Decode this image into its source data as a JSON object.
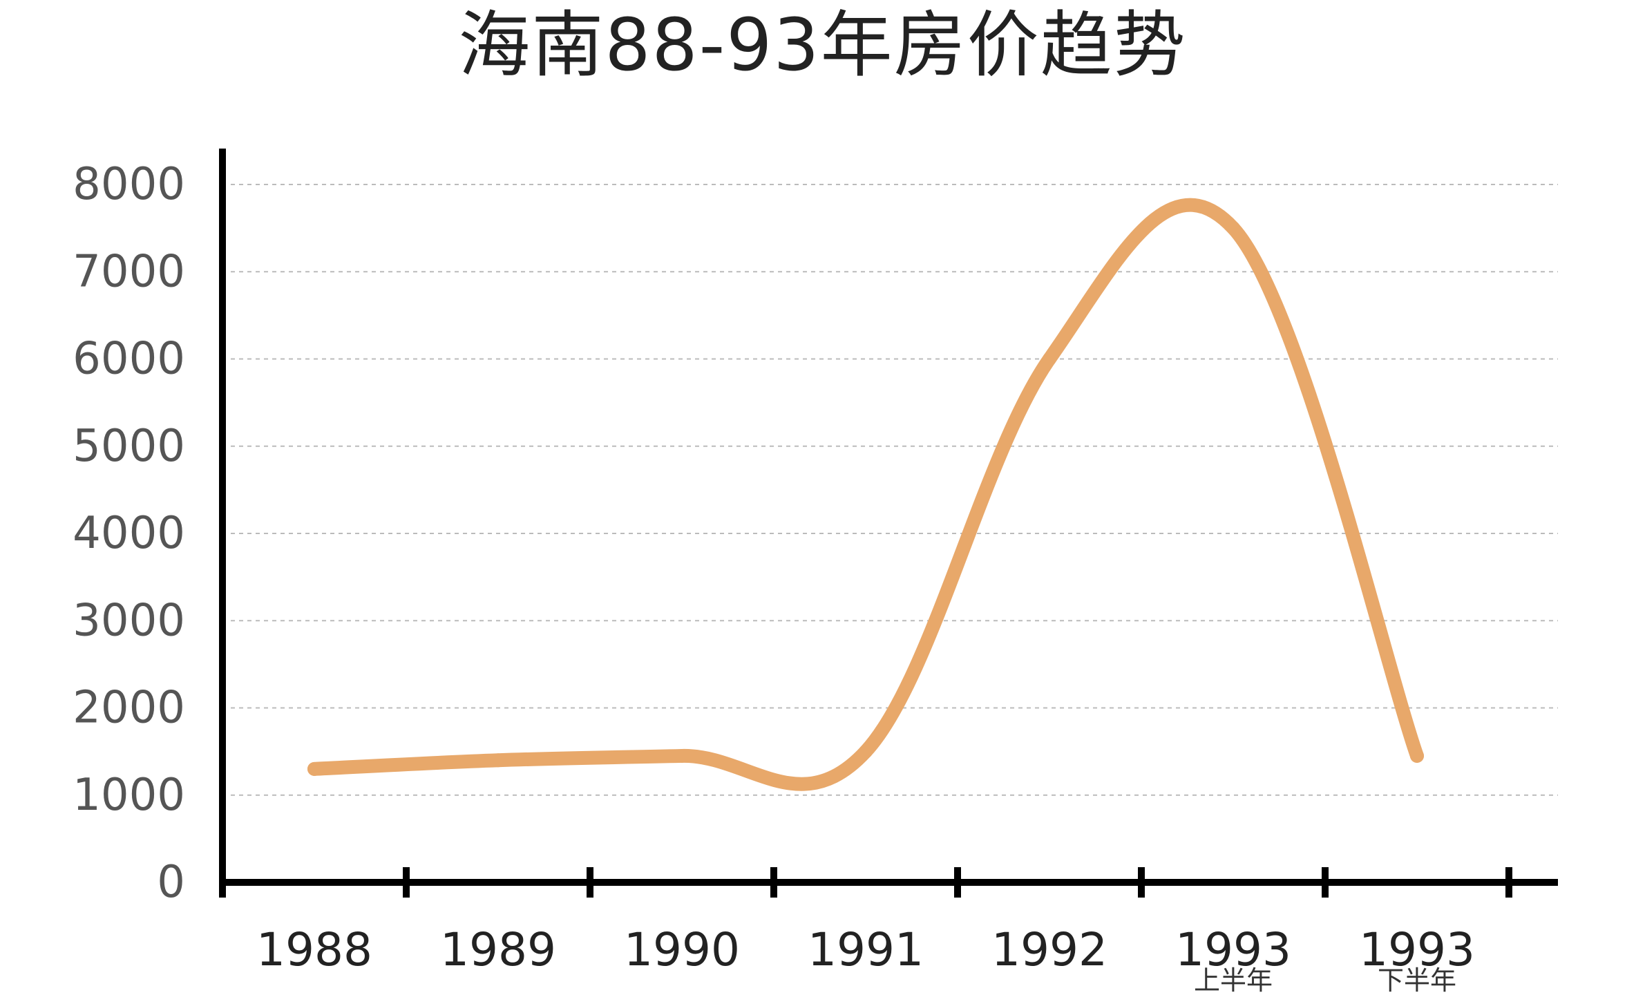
{
  "chart_data": {
    "type": "line",
    "title": "海南88-93年房价趋势",
    "xlabel": "",
    "ylabel": "",
    "ylim": [
      0,
      8000
    ],
    "yticks": [
      0,
      1000,
      2000,
      3000,
      4000,
      5000,
      6000,
      7000,
      8000
    ],
    "categories": [
      {
        "label": "1988",
        "sub": ""
      },
      {
        "label": "1989",
        "sub": ""
      },
      {
        "label": "1990",
        "sub": ""
      },
      {
        "label": "1991",
        "sub": ""
      },
      {
        "label": "1992",
        "sub": ""
      },
      {
        "label": "1993",
        "sub": "上半年"
      },
      {
        "label": "1993",
        "sub": "下半年"
      }
    ],
    "series": [
      {
        "values": [
          1300,
          1400,
          1450,
          1500,
          6000,
          7500,
          1450
        ]
      }
    ],
    "grid": true,
    "grid_style": "dashed",
    "line_color": "#E8A86A",
    "axis_color": "#000000",
    "grid_color": "#BBBBBB"
  }
}
